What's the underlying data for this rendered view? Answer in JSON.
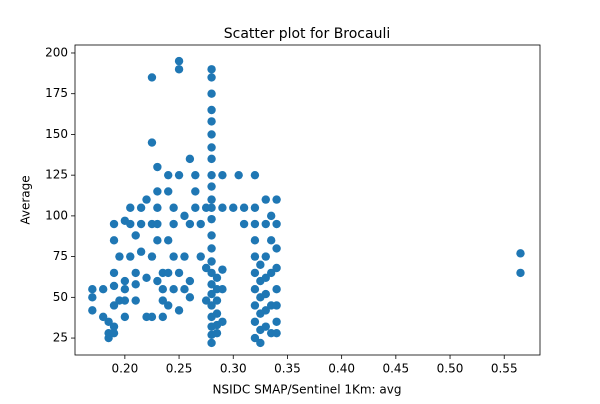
{
  "chart_data": {
    "type": "scatter",
    "title": "Scatter plot for Brocauli",
    "x_label": "NSIDC SMAP/Sentinel 1Km: avg",
    "y_label": "Average",
    "color": "#1f77b4",
    "xlim": [
      0.154,
      0.583
    ],
    "ylim": [
      14.6,
      204.9
    ],
    "xticks": [
      {
        "value": 0.2,
        "label": "0.20"
      },
      0.25,
      {
        "value": 0.3,
        "label": "0.30"
      },
      0.35,
      {
        "value": 0.4,
        "label": "0.40"
      },
      0.45,
      {
        "value": 0.5,
        "label": "0.50"
      },
      0.55
    ],
    "yticks": [
      25,
      50,
      75,
      100,
      125,
      150,
      175,
      200
    ],
    "x": [
      0.17,
      0.17,
      0.17,
      0.18,
      0.18,
      0.185,
      0.185,
      0.185,
      0.19,
      0.19,
      0.19,
      0.19,
      0.19,
      0.19,
      0.19,
      0.195,
      0.195,
      0.2,
      0.2,
      0.2,
      0.2,
      0.2,
      0.205,
      0.205,
      0.205,
      0.21,
      0.21,
      0.21,
      0.21,
      0.215,
      0.215,
      0.215,
      0.22,
      0.22,
      0.22,
      0.225,
      0.225,
      0.225,
      0.225,
      0.225,
      0.23,
      0.23,
      0.23,
      0.23,
      0.23,
      0.23,
      0.235,
      0.235,
      0.235,
      0.235,
      0.24,
      0.24,
      0.24,
      0.24,
      0.24,
      0.245,
      0.245,
      0.245,
      0.245,
      0.25,
      0.25,
      0.25,
      0.25,
      0.25,
      0.255,
      0.255,
      0.255,
      0.26,
      0.26,
      0.26,
      0.26,
      0.265,
      0.265,
      0.265,
      0.27,
      0.27,
      0.28,
      0.28,
      0.28,
      0.28,
      0.28,
      0.28,
      0.28,
      0.28,
      0.28,
      0.28,
      0.28,
      0.28,
      0.28,
      0.28,
      0.28,
      0.28,
      0.28,
      0.28,
      0.28,
      0.28,
      0.28,
      0.28,
      0.28,
      0.28,
      0.285,
      0.285,
      0.285,
      0.285,
      0.285,
      0.285,
      0.275,
      0.275,
      0.275,
      0.29,
      0.29,
      0.29,
      0.29,
      0.29,
      0.3,
      0.305,
      0.31,
      0.31,
      0.32,
      0.32,
      0.32,
      0.32,
      0.32,
      0.32,
      0.32,
      0.32,
      0.32,
      0.32,
      0.325,
      0.325,
      0.325,
      0.325,
      0.325,
      0.325,
      0.33,
      0.33,
      0.33,
      0.33,
      0.33,
      0.33,
      0.33,
      0.335,
      0.335,
      0.335,
      0.335,
      0.335,
      0.34,
      0.34,
      0.34,
      0.34,
      0.34,
      0.34,
      0.34,
      0.34,
      0.565,
      0.565
    ],
    "values": [
      55,
      50,
      42,
      38,
      55,
      35,
      25,
      28,
      45,
      57,
      32,
      28,
      65,
      85,
      95,
      75,
      48,
      97,
      55,
      38,
      48,
      60,
      105,
      75,
      95,
      88,
      65,
      48,
      58,
      105,
      78,
      95,
      110,
      38,
      62,
      185,
      145,
      95,
      75,
      38,
      115,
      130,
      105,
      85,
      60,
      95,
      65,
      48,
      55,
      38,
      125,
      115,
      85,
      65,
      45,
      75,
      105,
      95,
      55,
      195,
      190,
      125,
      65,
      42,
      100,
      75,
      55,
      135,
      95,
      60,
      50,
      115,
      125,
      105,
      95,
      75,
      190,
      185,
      175,
      165,
      158,
      150,
      142,
      135,
      125,
      118,
      110,
      105,
      98,
      88,
      80,
      72,
      65,
      58,
      52,
      45,
      38,
      32,
      27,
      22,
      62,
      55,
      48,
      40,
      33,
      28,
      105,
      68,
      48,
      125,
      105,
      67,
      55,
      35,
      105,
      125,
      95,
      105,
      125,
      105,
      95,
      85,
      75,
      65,
      55,
      45,
      35,
      25,
      70,
      60,
      50,
      40,
      30,
      22,
      110,
      95,
      75,
      62,
      52,
      42,
      32,
      100,
      85,
      65,
      45,
      28,
      110,
      95,
      80,
      68,
      55,
      45,
      35,
      28,
      77,
      65
    ]
  }
}
